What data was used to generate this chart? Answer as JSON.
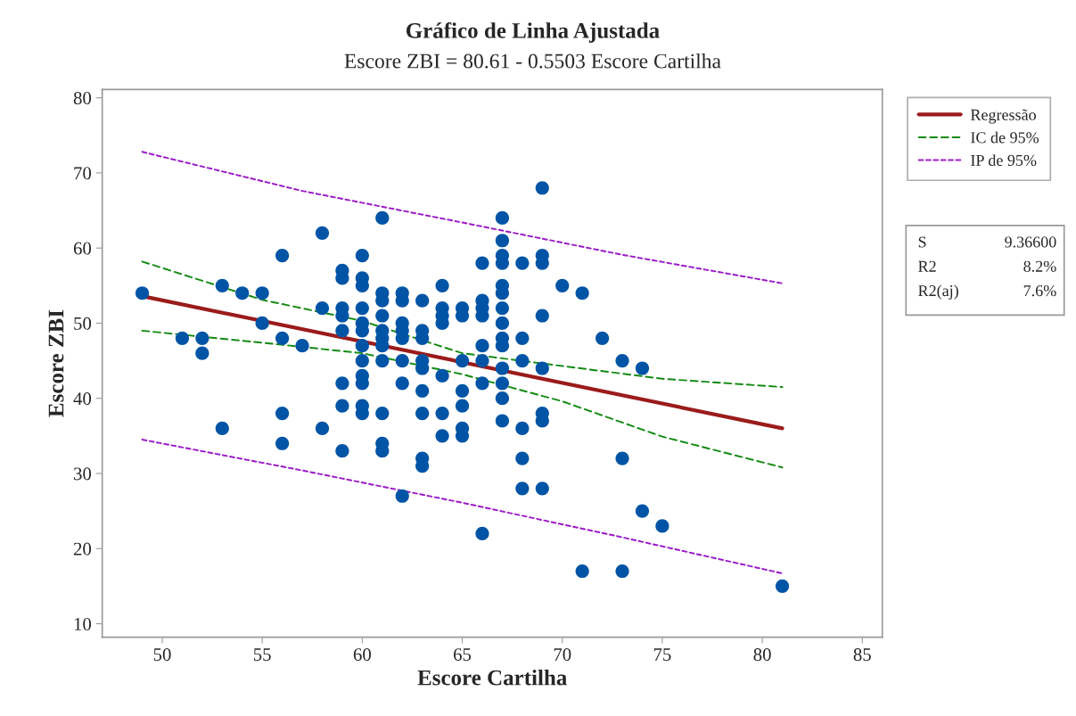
{
  "chart_data": {
    "type": "scatter",
    "title": "Gráfico de Linha Ajustada",
    "subtitle": "Escore ZBI = 80.61 - 0.5503 Escore Cartilha",
    "xlabel": "Escore Cartilha",
    "ylabel": "Escore ZBI",
    "xlim": [
      47,
      86
    ],
    "ylim": [
      8.2,
      81.1
    ],
    "xticks": [
      50,
      55,
      60,
      65,
      70,
      75,
      80,
      85
    ],
    "yticks": [
      10,
      20,
      30,
      40,
      50,
      60,
      70,
      80
    ],
    "grid": false,
    "legend": "right",
    "series": [
      {
        "type": "scatter",
        "color": "#0054a6",
        "marker": "circle",
        "x": [
          49,
          51,
          52,
          52,
          53,
          53,
          54,
          55,
          55,
          56,
          56,
          56,
          56,
          57,
          58,
          58,
          58,
          59,
          59,
          59,
          59,
          59,
          59,
          59,
          59,
          60,
          60,
          60,
          60,
          60,
          60,
          60,
          60,
          60,
          60,
          60,
          60,
          61,
          61,
          61,
          61,
          61,
          61,
          61,
          61,
          61,
          61,
          61,
          62,
          62,
          62,
          62,
          62,
          62,
          62,
          62,
          63,
          63,
          63,
          63,
          63,
          63,
          63,
          63,
          63,
          64,
          64,
          64,
          64,
          64,
          64,
          64,
          65,
          65,
          65,
          65,
          65,
          65,
          65,
          66,
          66,
          66,
          66,
          66,
          66,
          66,
          66,
          67,
          67,
          67,
          67,
          67,
          67,
          67,
          67,
          67,
          67,
          67,
          67,
          67,
          67,
          68,
          68,
          68,
          68,
          68,
          68,
          69,
          69,
          69,
          69,
          69,
          69,
          69,
          69,
          70,
          71,
          71,
          72,
          73,
          73,
          73,
          74,
          74,
          75,
          81
        ],
        "values": [
          54,
          48,
          48,
          46,
          55,
          36,
          54,
          54,
          50,
          59,
          48,
          38,
          34,
          47,
          62,
          52,
          36,
          57,
          56,
          52,
          51,
          49,
          42,
          39,
          33,
          59,
          56,
          55,
          52,
          50,
          49,
          47,
          45,
          43,
          42,
          39,
          38,
          64,
          54,
          53,
          51,
          49,
          48,
          47,
          45,
          38,
          34,
          33,
          54,
          53,
          50,
          49,
          48,
          45,
          42,
          27,
          53,
          49,
          48,
          45,
          44,
          41,
          38,
          32,
          31,
          55,
          52,
          51,
          50,
          43,
          38,
          35,
          52,
          51,
          45,
          41,
          39,
          36,
          35,
          58,
          53,
          52,
          51,
          47,
          45,
          42,
          22,
          64,
          61,
          59,
          58,
          55,
          54,
          52,
          50,
          48,
          47,
          44,
          42,
          40,
          37,
          58,
          48,
          45,
          36,
          32,
          28,
          68,
          59,
          58,
          51,
          44,
          38,
          37,
          28,
          55,
          54,
          17,
          48,
          45,
          32,
          17,
          44,
          25,
          23,
          15
        ]
      },
      {
        "type": "line",
        "name": "Regressão",
        "color": "#9b1b1b",
        "line_style": "solid",
        "x": [
          49,
          81
        ],
        "values": [
          53.6,
          36.0
        ]
      },
      {
        "type": "line",
        "name": "IC de 95%",
        "color": "#138a13",
        "line_style": "dashed",
        "x": [
          49,
          55,
          60,
          65,
          70,
          75,
          81
        ],
        "values": [
          58.2,
          53.1,
          50.3,
          46.0,
          44.3,
          42.6,
          41.5
        ]
      },
      {
        "type": "line",
        "color": "#138a13",
        "line_style": "dashed",
        "x": [
          49,
          55,
          60,
          65,
          70,
          75,
          81
        ],
        "values": [
          49.0,
          47.4,
          46.0,
          43.2,
          39.6,
          34.9,
          30.8
        ]
      },
      {
        "type": "line",
        "name": "IP de 95%",
        "color": "#9b1bc8",
        "line_style": "dotted",
        "x": [
          49,
          57,
          65,
          73,
          81
        ],
        "values": [
          72.8,
          67.6,
          63.4,
          59.1,
          55.3
        ]
      },
      {
        "type": "line",
        "color": "#9b1bc8",
        "line_style": "dotted",
        "x": [
          49,
          57,
          65,
          73,
          81
        ],
        "values": [
          34.5,
          30.4,
          26.1,
          21.5,
          16.7
        ]
      }
    ],
    "annotations": [
      "S",
      "9.36600",
      "R2",
      "8.2%",
      "R2(aj)",
      "7.6%"
    ]
  }
}
